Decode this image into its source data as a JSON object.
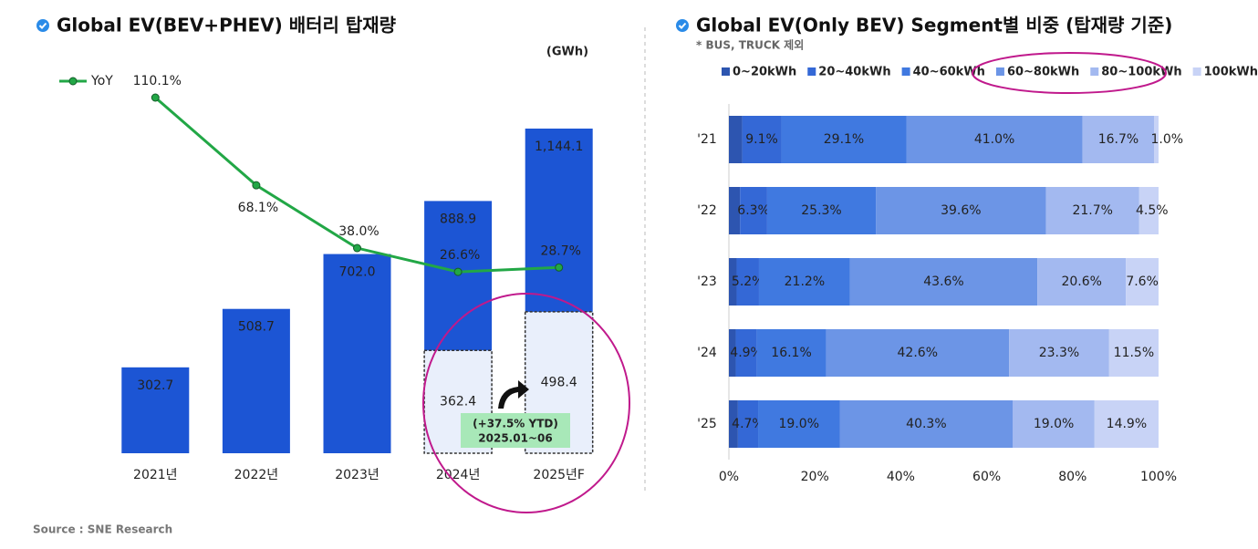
{
  "source": "Source : SNE Research",
  "chart_data": [
    {
      "type": "bar",
      "title": "Global EV(BEV+PHEV) 배터리 탑재량",
      "unit": "(GWh)",
      "categories": [
        "2021년",
        "2022년",
        "2023년",
        "2024년",
        "2025년F"
      ],
      "values": [
        302.7,
        508.7,
        702.0,
        888.9,
        1144.1
      ],
      "value_labels": [
        "302.7",
        "508.7",
        "702.0",
        "888.9",
        "1,144.1"
      ],
      "color": "#1c55d4",
      "ytd_values": [
        null,
        null,
        null,
        362.4,
        498.4
      ],
      "ytd_color": "#e9effb",
      "annotations": [
        "(+37.5% YTD)",
        "2025.01~06"
      ],
      "line": {
        "name": "YoY",
        "color": "#22a746",
        "values": [
          110.1,
          68.1,
          38.0,
          26.6,
          28.7
        ],
        "value_labels": [
          "110.1%",
          "68.1%",
          "38.0%",
          "26.6%",
          "28.7%"
        ]
      }
    },
    {
      "type": "stacked_barh",
      "title": "Global EV(Only BEV) Segment별 비중 (탑재량 기준)",
      "subtitle": "* BUS, TRUCK 제외",
      "categories": [
        "'21",
        "'22",
        "'23",
        "'24",
        "'25"
      ],
      "series": [
        {
          "name": "0~20kWh",
          "color": "#2d55b0",
          "values": [
            3.1,
            2.6,
            1.8,
            1.6,
            2.1
          ],
          "value_labels": [
            null,
            null,
            null,
            null,
            null
          ]
        },
        {
          "name": "20~40kWh",
          "color": "#3468d6",
          "values": [
            9.1,
            6.3,
            5.2,
            4.9,
            4.7
          ],
          "value_labels": [
            "9.1%",
            "6.3%",
            "5.2%",
            "4.9%",
            "4.7%"
          ]
        },
        {
          "name": "40~60kWh",
          "color": "#4079e0",
          "values": [
            29.1,
            25.3,
            21.2,
            16.1,
            19.0
          ],
          "value_labels": [
            "29.1%",
            "25.3%",
            "21.2%",
            "16.1%",
            "19.0%"
          ]
        },
        {
          "name": "60~80kWh",
          "color": "#6c95e6",
          "values": [
            41.0,
            39.6,
            43.6,
            42.6,
            40.3
          ],
          "value_labels": [
            "41.0%",
            "39.6%",
            "43.6%",
            "42.6%",
            "40.3%"
          ]
        },
        {
          "name": "80~100kWh",
          "color": "#a3b9f0",
          "values": [
            16.7,
            21.7,
            20.6,
            23.3,
            19.0
          ],
          "value_labels": [
            "16.7%",
            "21.7%",
            "20.6%",
            "23.3%",
            "19.0%"
          ]
        },
        {
          "name": "100kWh~",
          "color": "#c8d3f6",
          "values": [
            1.0,
            4.5,
            7.6,
            11.5,
            14.9
          ],
          "value_labels": [
            "1.0%",
            "4.5%",
            "7.6%",
            "11.5%",
            "14.9%"
          ]
        }
      ],
      "xlim": [
        0,
        100
      ],
      "xticks": [
        {
          "value": 0,
          "label": "0%"
        },
        {
          "value": 20,
          "label": "20%"
        },
        {
          "value": 40,
          "label": "40%"
        },
        {
          "value": 60,
          "label": "60%"
        },
        {
          "value": 80,
          "label": "80%"
        },
        {
          "value": 100,
          "label": "100%"
        }
      ]
    }
  ]
}
